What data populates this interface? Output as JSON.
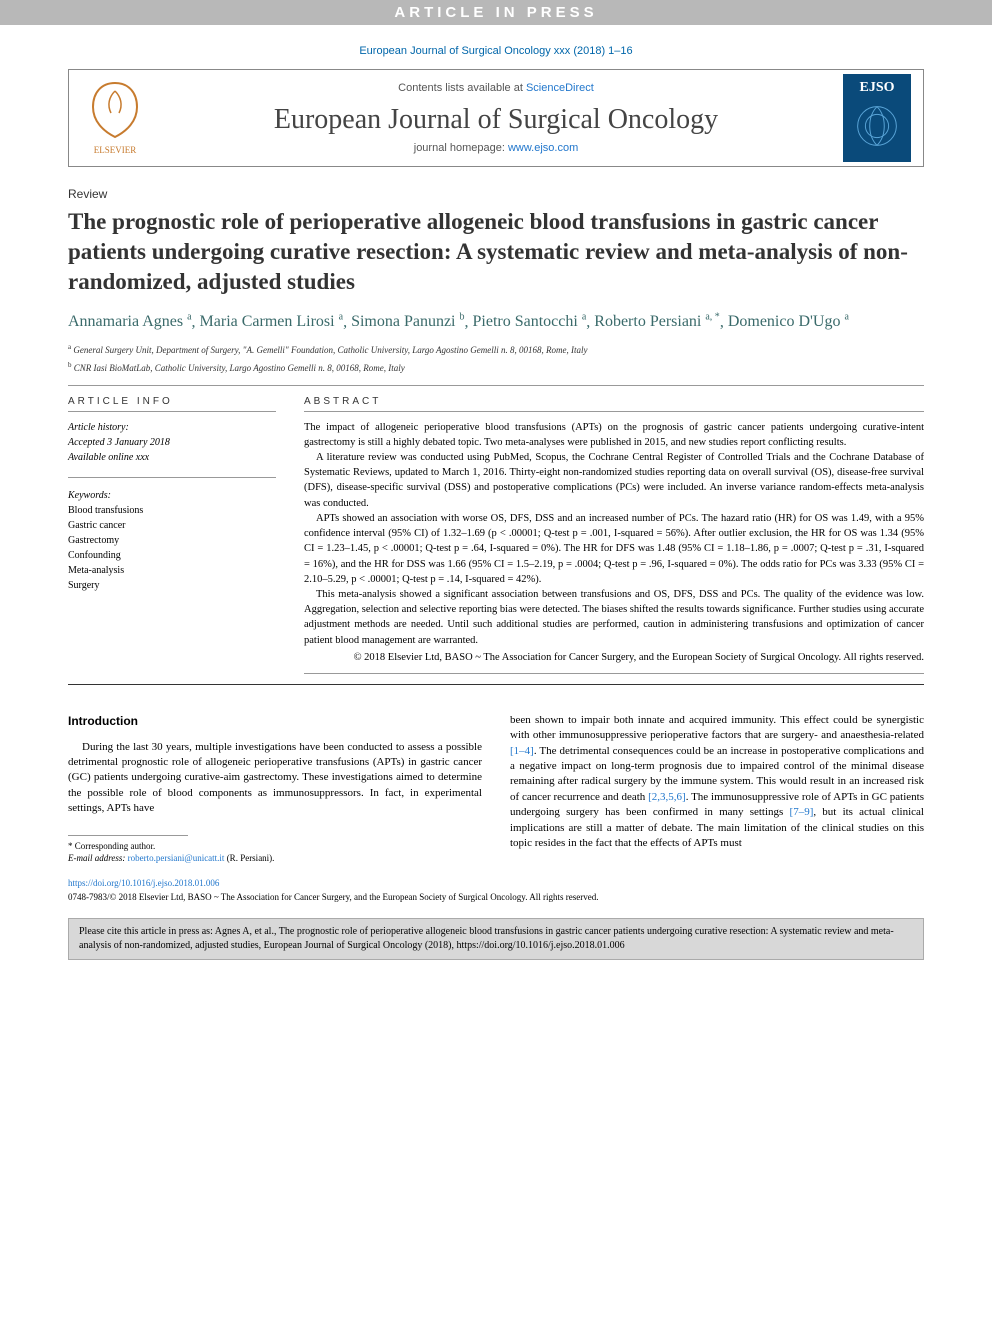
{
  "banner": "ARTICLE IN PRESS",
  "journal_ref": "European Journal of Surgical Oncology xxx (2018) 1–16",
  "header": {
    "contents_text": "Contents lists available at ",
    "contents_link": "ScienceDirect",
    "journal_name": "European Journal of Surgical Oncology",
    "homepage_label": "journal homepage: ",
    "homepage_url": "www.ejso.com",
    "publisher_logo_text": "ELSEVIER",
    "cover_logo_text": "EJSO"
  },
  "article_type": "Review",
  "title": "The prognostic role of perioperative allogeneic blood transfusions in gastric cancer patients undergoing curative resection: A systematic review and meta-analysis of non-randomized, adjusted studies",
  "authors": [
    {
      "name": "Annamaria Agnes",
      "sup": "a"
    },
    {
      "name": "Maria Carmen Lirosi",
      "sup": "a"
    },
    {
      "name": "Simona Panunzi",
      "sup": "b"
    },
    {
      "name": "Pietro Santocchi",
      "sup": "a"
    },
    {
      "name": "Roberto Persiani",
      "sup": "a, *"
    },
    {
      "name": "Domenico D'Ugo",
      "sup": "a"
    }
  ],
  "affiliations": [
    {
      "sup": "a",
      "text": "General Surgery Unit, Department of Surgery, \"A. Gemelli\" Foundation, Catholic University, Largo Agostino Gemelli n. 8, 00168, Rome, Italy"
    },
    {
      "sup": "b",
      "text": "CNR Iasi BioMatLab, Catholic University, Largo Agostino Gemelli n. 8, 00168, Rome, Italy"
    }
  ],
  "info": {
    "heading": "ARTICLE INFO",
    "history_label": "Article history:",
    "accepted": "Accepted 3 January 2018",
    "available": "Available online xxx",
    "keywords_label": "Keywords:",
    "keywords": [
      "Blood transfusions",
      "Gastric cancer",
      "Gastrectomy",
      "Confounding",
      "Meta-analysis",
      "Surgery"
    ]
  },
  "abstract": {
    "heading": "ABSTRACT",
    "paragraphs": [
      "The impact of allogeneic perioperative blood transfusions (APTs) on the prognosis of gastric cancer patients undergoing curative-intent gastrectomy is still a highly debated topic. Two meta-analyses were published in 2015, and new studies report conflicting results.",
      "A literature review was conducted using PubMed, Scopus, the Cochrane Central Register of Controlled Trials and the Cochrane Database of Systematic Reviews, updated to March 1, 2016. Thirty-eight non-randomized studies reporting data on overall survival (OS), disease-free survival (DFS), disease-specific survival (DSS) and postoperative complications (PCs) were included. An inverse variance random-effects meta-analysis was conducted.",
      "APTs showed an association with worse OS, DFS, DSS and an increased number of PCs. The hazard ratio (HR) for OS was 1.49, with a 95% confidence interval (95% CI) of 1.32–1.69 (p < .00001; Q-test p = .001, I-squared = 56%). After outlier exclusion, the HR for OS was 1.34 (95% CI = 1.23–1.45, p < .00001; Q-test p = .64, I-squared = 0%). The HR for DFS was 1.48 (95% CI = 1.18–1.86, p = .0007; Q-test p = .31, I-squared = 16%), and the HR for DSS was 1.66 (95% CI = 1.5–2.19, p = .0004; Q-test p = .96, I-squared = 0%). The odds ratio for PCs was 3.33 (95% CI = 2.10–5.29, p < .00001; Q-test p = .14, I-squared = 42%).",
      "This meta-analysis showed a significant association between transfusions and OS, DFS, DSS and PCs. The quality of the evidence was low. Aggregation, selection and selective reporting bias were detected. The biases shifted the results towards significance. Further studies using accurate adjustment methods are needed. Until such additional studies are performed, caution in administering transfusions and optimization of cancer patient blood management are warranted."
    ],
    "copyright": "© 2018 Elsevier Ltd, BASO ~ The Association for Cancer Surgery, and the European Society of Surgical Oncology. All rights reserved."
  },
  "body": {
    "intro_heading": "Introduction",
    "left_para": "During the last 30 years, multiple investigations have been conducted to assess a possible detrimental prognostic role of allogeneic perioperative transfusions (APTs) in gastric cancer (GC) patients undergoing curative-aim gastrectomy. These investigations aimed to determine the possible role of blood components as immunosuppressors. In fact, in experimental settings, APTs have",
    "right_para_1": "been shown to impair both innate and acquired immunity. This effect could be synergistic with other immunosuppressive perioperative factors that are surgery- and anaesthesia-related ",
    "right_cites_1": "[1–4]",
    "right_para_2": ". The detrimental consequences could be an increase in postoperative complications and a negative impact on long-term prognosis due to impaired control of the minimal disease remaining after radical surgery by the immune system. This would result in an increased risk of cancer recurrence and death ",
    "right_cites_2": "[2,3,5,6]",
    "right_para_3": ". The immunosuppressive role of APTs in GC patients undergoing surgery has been confirmed in many settings ",
    "right_cites_3": "[7–9]",
    "right_para_4": ", but its actual clinical implications are still a matter of debate. The main limitation of the clinical studies on this topic resides in the fact that the effects of APTs must"
  },
  "footnote": {
    "corresponding": "* Corresponding author.",
    "email_label": "E-mail address: ",
    "email": "roberto.persiani@unicatt.it",
    "email_attr": " (R. Persiani)."
  },
  "bottom": {
    "doi": "https://doi.org/10.1016/j.ejso.2018.01.006",
    "issn": "0748-7983/© 2018 Elsevier Ltd, BASO ~ The Association for Cancer Surgery, and the European Society of Surgical Oncology. All rights reserved."
  },
  "citebox": "Please cite this article in press as: Agnes A, et al., The prognostic role of perioperative allogeneic blood transfusions in gastric cancer patients undergoing curative resection: A systematic review and meta-analysis of non-randomized, adjusted studies, European Journal of Surgical Oncology (2018), https://doi.org/10.1016/j.ejso.2018.01.006",
  "colors": {
    "banner_bg": "#b8b8b8",
    "link": "#2277cc",
    "author": "#3a6a6a",
    "citebox_bg": "#d8d8d8",
    "cover_bg": "#0a4a7a"
  }
}
